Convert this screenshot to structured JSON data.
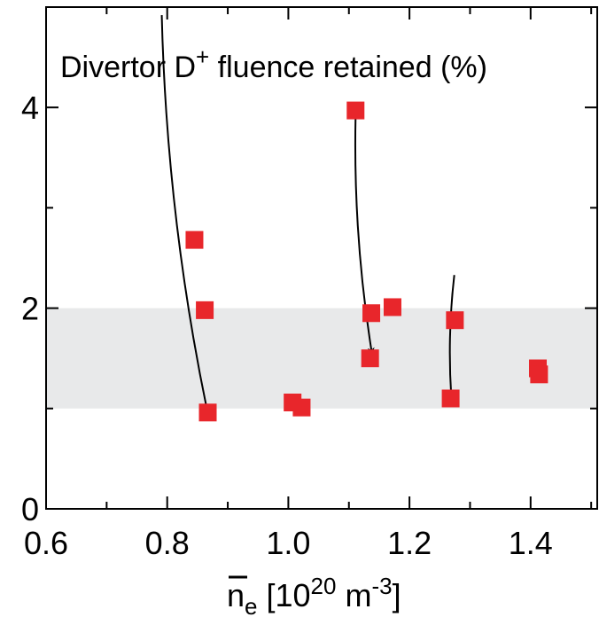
{
  "chart_data": {
    "type": "scatter",
    "title": {
      "prefix": "Divertor D",
      "superscript": "+",
      "suffix": " fluence retained (%)"
    },
    "xlabel": {
      "overline_symbol": "n",
      "subscript": "e",
      "bracket_open": " [10",
      "exponent": "20",
      "unit": " m",
      "unit_exponent": "-3",
      "bracket_close": "]"
    },
    "ylabel": "",
    "xlim": [
      0.6,
      1.51
    ],
    "ylim": [
      0,
      5
    ],
    "x_ticks": [
      0.6,
      0.8,
      1.0,
      1.2,
      1.4
    ],
    "x_tick_labels": [
      "0.6",
      "0.8",
      "1.0",
      "1.2",
      "1.4"
    ],
    "x_minor_ticks": [
      0.7,
      0.9,
      1.1,
      1.3,
      1.5
    ],
    "y_ticks": [
      0,
      2,
      4
    ],
    "y_tick_labels": [
      "0",
      "2",
      "4"
    ],
    "y_minor_ticks": [
      1,
      3
    ],
    "grid": false,
    "shaded_band": {
      "y_range": [
        1,
        2
      ],
      "color": "#e8e9ea"
    },
    "marker_color": "#e8262b",
    "arrow_color": "#000000",
    "series": [
      {
        "values": [
          {
            "x": 0.845,
            "y": 2.68
          },
          {
            "x": 0.862,
            "y": 1.98
          },
          {
            "x": 0.867,
            "y": 0.96
          },
          {
            "x": 1.007,
            "y": 1.06
          },
          {
            "x": 1.022,
            "y": 1.01
          },
          {
            "x": 1.111,
            "y": 3.97
          },
          {
            "x": 1.135,
            "y": 1.5
          },
          {
            "x": 1.137,
            "y": 1.95
          },
          {
            "x": 1.172,
            "y": 2.01
          },
          {
            "x": 1.268,
            "y": 1.1
          },
          {
            "x": 1.275,
            "y": 1.88
          },
          {
            "x": 1.412,
            "y": 1.4
          },
          {
            "x": 1.414,
            "y": 1.34
          }
        ]
      }
    ],
    "arrows": [
      {
        "from": [
          0.791,
          4.92
        ],
        "to": [
          0.866,
          0.98
        ]
      },
      {
        "from": [
          1.111,
          3.9
        ],
        "to": [
          1.138,
          1.55
        ]
      },
      {
        "from": [
          1.274,
          2.33
        ],
        "to": [
          1.269,
          1.12
        ]
      }
    ]
  }
}
